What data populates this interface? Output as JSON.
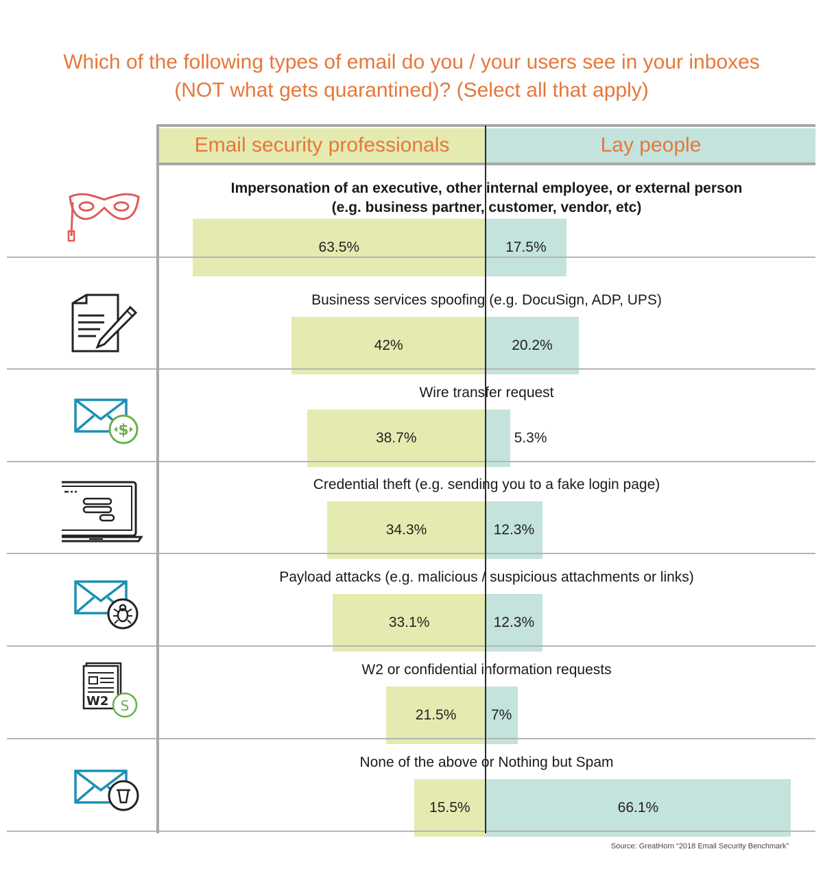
{
  "title": {
    "line1": "Which of the following types of email do you / your users see in your inboxes",
    "line2": "(NOT what gets quarantined)? (Select all that apply)"
  },
  "colors": {
    "accent": "#e5773a",
    "professionals": "#e5eab0",
    "lay": "#c3e3dc"
  },
  "source": "Source: GreatHorn “2018 Email Security Benchmark”",
  "chart_data": {
    "type": "bar",
    "orientation": "horizontal-diverging",
    "series": [
      {
        "name": "Email security professionals",
        "values": [
          63.5,
          42,
          38.7,
          34.3,
          33.1,
          21.5,
          15.5
        ]
      },
      {
        "name": "Lay people",
        "values": [
          17.5,
          20.2,
          5.3,
          12.3,
          12.3,
          7,
          66.1
        ]
      }
    ],
    "categories": [
      {
        "line1": "Impersonation of an executive, other internal employee, or external person",
        "line2": "(e.g. business partner, customer, vendor, etc)",
        "icon": "mask-icon"
      },
      {
        "line1": "Business services spoofing (e.g. DocuSign, ADP, UPS)",
        "line2": "",
        "icon": "document-pen-icon"
      },
      {
        "line1": "Wire transfer request",
        "line2": "",
        "icon": "email-money-icon"
      },
      {
        "line1": "Credential theft (e.g. sending you to a fake login page)",
        "line2": "",
        "icon": "laptop-login-icon"
      },
      {
        "line1": "Payload attacks (e.g. malicious / suspicious attachments or links)",
        "line2": "",
        "icon": "email-bug-icon"
      },
      {
        "line1": "W2 or confidential information requests",
        "line2": "",
        "icon": "w2-form-icon"
      },
      {
        "line1": "None of the above or Nothing but Spam",
        "line2": "",
        "icon": "email-trash-icon"
      }
    ],
    "value_labels": {
      "professionals": [
        "63.5%",
        "42%",
        "38.7%",
        "34.3%",
        "33.1%",
        "21.5%",
        "15.5%"
      ],
      "lay": [
        "17.5%",
        "20.2%",
        "5.3%",
        "12.3%",
        "12.3%",
        "7%",
        "66.1%"
      ]
    },
    "icon_texts": {
      "w2": "W2",
      "w2_coin": "S"
    }
  }
}
